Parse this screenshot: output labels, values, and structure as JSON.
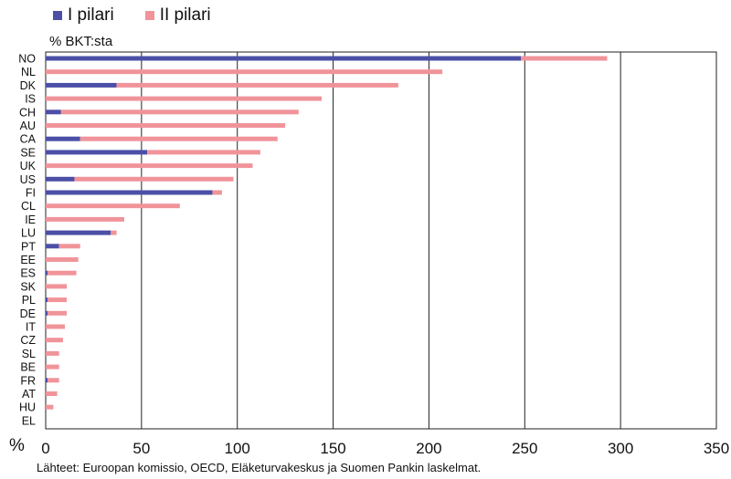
{
  "chart_data": {
    "type": "bar",
    "orientation": "horizontal",
    "stacked": true,
    "unit_label": "% BKT:sta",
    "axis_symbol": "%",
    "source": "Lähteet: Euroopan komissio, OECD, Eläketurvakeskus ja Suomen Pankin laskelmat.",
    "xlim": [
      0,
      350
    ],
    "xticks": [
      "0",
      "50",
      "100",
      "150",
      "200",
      "250",
      "300",
      "350"
    ],
    "grid": "vertical",
    "legend_placement": "top-left",
    "categories": [
      "NO",
      "NL",
      "DK",
      "IS",
      "CH",
      "AU",
      "CA",
      "SE",
      "UK",
      "US",
      "FI",
      "CL",
      "IE",
      "LU",
      "PT",
      "EE",
      "ES",
      "SK",
      "PL",
      "DE",
      "IT",
      "CZ",
      "SL",
      "BE",
      "FR",
      "AT",
      "HU",
      "EL"
    ],
    "series": [
      {
        "name": "I pilari",
        "color": "#4b4fa6",
        "values": [
          248,
          0,
          37,
          0,
          8,
          0,
          18,
          53,
          0,
          15,
          87,
          0,
          0,
          34,
          7,
          0,
          1,
          0,
          1,
          1,
          0,
          0,
          0,
          0,
          1,
          0,
          0,
          0
        ]
      },
      {
        "name": "II pilari",
        "color": "#f0949a",
        "values": [
          45,
          207,
          147,
          144,
          124,
          125,
          103,
          59,
          108,
          83,
          5,
          70,
          41,
          3,
          11,
          17,
          15,
          11,
          10,
          10,
          10,
          9,
          7,
          7,
          6,
          6,
          4,
          0
        ]
      }
    ]
  }
}
